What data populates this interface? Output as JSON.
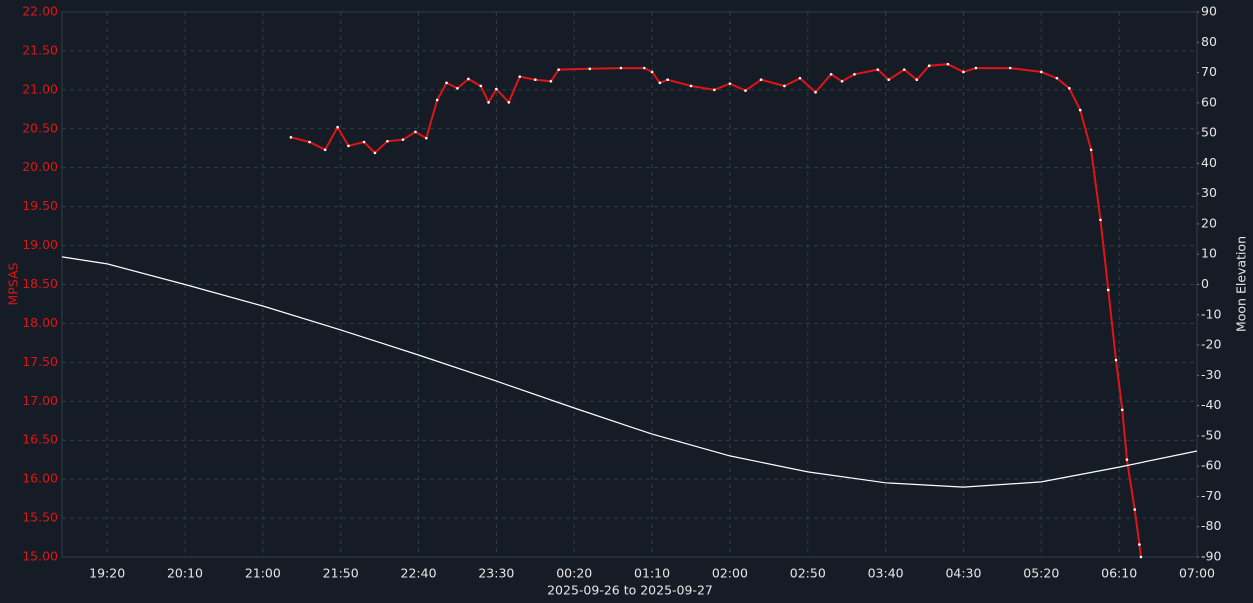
{
  "chart_data": {
    "type": "line",
    "xlabel": "2025-09-26 to 2025-09-27",
    "ylabel": "MPSAS",
    "y2label": "Moon Elevation",
    "xlim": [
      "18:51",
      "07:00"
    ],
    "xticks": [
      "19:20",
      "20:10",
      "21:00",
      "21:50",
      "22:40",
      "23:30",
      "00:20",
      "01:10",
      "02:00",
      "02:50",
      "03:40",
      "04:30",
      "05:20",
      "06:10",
      "07:00"
    ],
    "ylim": [
      15,
      22
    ],
    "yticks": [
      {
        "value": 15,
        "label": "15.00"
      },
      {
        "value": 15.5,
        "label": "15.50"
      },
      {
        "value": 16,
        "label": "16.00"
      },
      {
        "value": 16.5,
        "label": "16.50"
      },
      {
        "value": 17,
        "label": "17.00"
      },
      {
        "value": 17.5,
        "label": "17.50"
      },
      {
        "value": 18,
        "label": "18.00"
      },
      {
        "value": 18.5,
        "label": "18.50"
      },
      {
        "value": 19,
        "label": "19.00"
      },
      {
        "value": 19.5,
        "label": "19.50"
      },
      {
        "value": 20,
        "label": "20.00"
      },
      {
        "value": 20.5,
        "label": "20.50"
      },
      {
        "value": 21,
        "label": "21.00"
      },
      {
        "value": 21.5,
        "label": "21.50"
      },
      {
        "value": 22,
        "label": "22.00"
      }
    ],
    "y2lim": [
      -90,
      90
    ],
    "y2ticks": [
      -90,
      -80,
      -70,
      -60,
      -50,
      -40,
      -30,
      -20,
      -10,
      0,
      10,
      20,
      30,
      40,
      50,
      60,
      70,
      80,
      90
    ],
    "grid": true,
    "series": [
      {
        "color": "#e01414",
        "markers": true,
        "x": [
          "21:18",
          "21:30",
          "21:40",
          "21:48",
          "21:55",
          "22:05",
          "22:12",
          "22:20",
          "22:30",
          "22:38",
          "22:45",
          "22:52",
          "22:58",
          "23:05",
          "23:12",
          "23:20",
          "23:25",
          "23:30",
          "23:38",
          "23:45",
          "23:55",
          "00:05",
          "00:10",
          "00:30",
          "00:50",
          "01:05",
          "01:10",
          "01:15",
          "01:20",
          "01:35",
          "01:50",
          "02:00",
          "02:10",
          "02:20",
          "02:35",
          "02:45",
          "02:55",
          "03:05",
          "03:12",
          "03:20",
          "03:35",
          "03:42",
          "03:52",
          "04:00",
          "04:08",
          "04:20",
          "04:30",
          "04:38",
          "05:00",
          "05:20",
          "05:30",
          "05:38",
          "05:45",
          "05:52",
          "05:58",
          "06:03",
          "06:08",
          "06:12",
          "06:15",
          "06:20",
          "06:23",
          "06:24"
        ],
        "values": [
          20.39,
          20.33,
          20.23,
          20.52,
          20.28,
          20.33,
          20.19,
          20.34,
          20.36,
          20.46,
          20.38,
          20.87,
          21.09,
          21.02,
          21.14,
          21.05,
          20.84,
          21.01,
          20.84,
          21.17,
          21.13,
          21.11,
          21.26,
          21.27,
          21.28,
          21.28,
          21.23,
          21.09,
          21.13,
          21.05,
          21.0,
          21.08,
          20.99,
          21.13,
          21.05,
          21.15,
          20.97,
          21.2,
          21.11,
          21.2,
          21.26,
          21.13,
          21.26,
          21.13,
          21.31,
          21.33,
          21.23,
          21.28,
          21.28,
          21.23,
          21.15,
          21.02,
          20.74,
          20.23,
          19.33,
          18.43,
          17.53,
          16.89,
          16.25,
          15.61,
          15.16,
          15.0
        ]
      },
      {
        "color": "#ffffff",
        "axis": "y2",
        "x": [
          "18:51",
          "19:20",
          "20:10",
          "21:00",
          "21:50",
          "22:40",
          "23:30",
          "00:20",
          "01:10",
          "02:00",
          "02:50",
          "03:40",
          "04:30",
          "05:20",
          "06:10",
          "07:00"
        ],
        "values": [
          9.1,
          6.8,
          0,
          -7.1,
          -15,
          -23.3,
          -31.9,
          -40.8,
          -49.4,
          -56.6,
          -61.9,
          -65.5,
          -66.9,
          -65.2,
          -60.3,
          -55
        ]
      }
    ]
  }
}
